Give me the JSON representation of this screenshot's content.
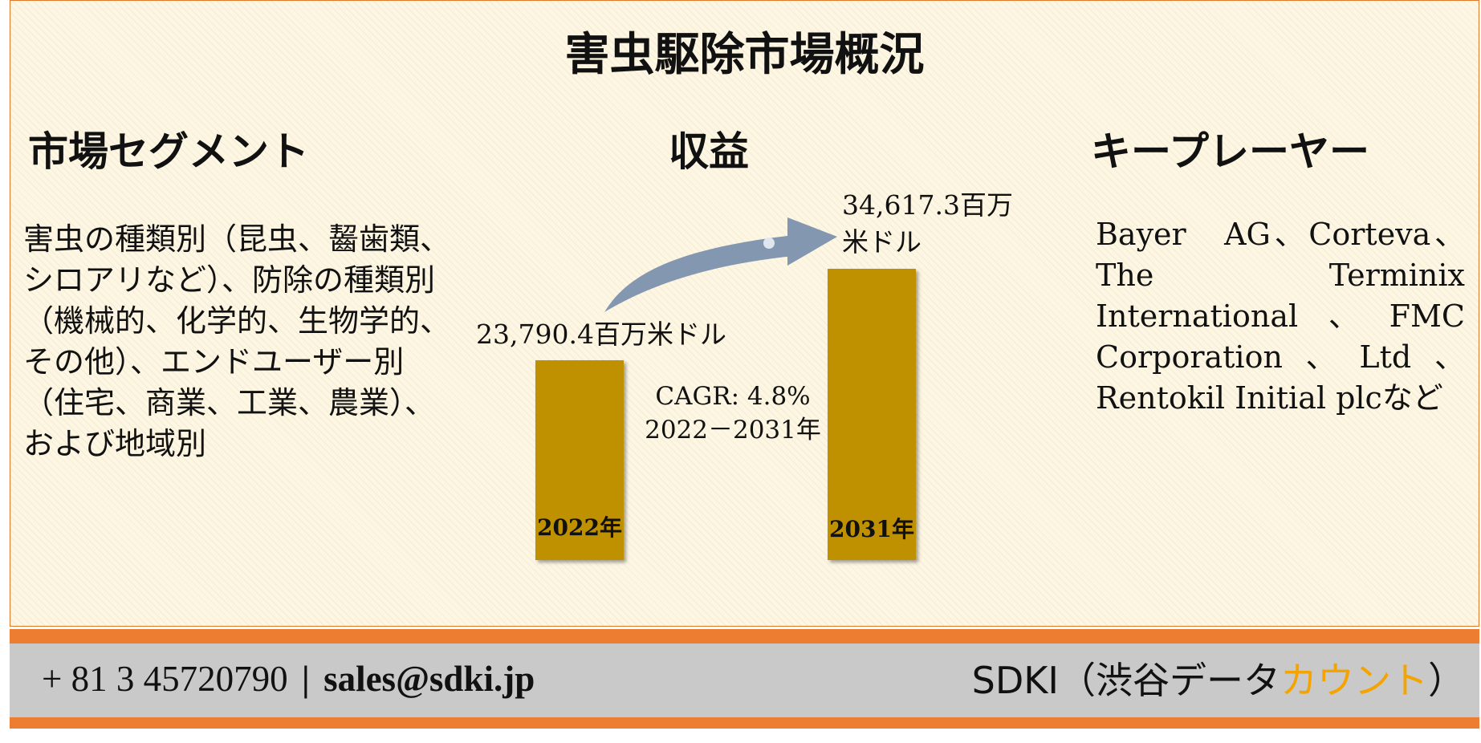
{
  "title": "害虫駆除市場概況",
  "segments": {
    "heading": "市場セグメント",
    "text": "害虫の種類別（昆虫、齧歯類、シロアリなど）、防除の種類別（機械的、化学的、生物学的、その他）、エンドユーザー別（住宅、商業、工業、農業）、および地域別"
  },
  "revenue": {
    "heading": "収益",
    "cagr_line1": "CAGR: 4.8%",
    "cagr_line2": "2022－2031年"
  },
  "players": {
    "heading": "キープレーヤー",
    "text": "Bayer　AG、Corteva、The　Terminix International、FMC Corporation、Ltd、Rentokil Initial plcなど"
  },
  "chart_data": {
    "type": "bar",
    "categories": [
      "2022年",
      "2031年"
    ],
    "values": [
      23790.4,
      34617.3
    ],
    "value_labels": [
      "23,790.4百万米ドル",
      "34,617.3百万\n米ドル"
    ],
    "ylim": [
      0,
      34617.3
    ],
    "colors": {
      "bar": "#bf9000",
      "arrow": "#8497b0"
    }
  },
  "footer": {
    "phone": "+ 81 3 45720790",
    "separator": "|",
    "email": "sales@sdki.jp",
    "brand_prefix": "SDKI（渋谷データ",
    "brand_accent": "カウント",
    "brand_suffix": "）",
    "colors": {
      "strip": "#ed7d31",
      "bar": "#c9c9c9",
      "accent": "#f5a300"
    }
  }
}
